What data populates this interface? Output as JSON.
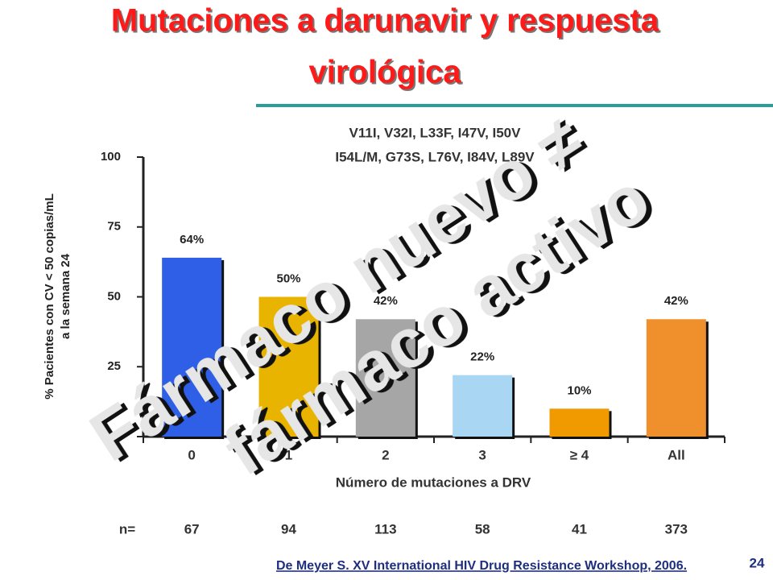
{
  "chart_data": {
    "type": "bar",
    "title": [
      "Mutaciones a darunavir y respuesta",
      "virológica"
    ],
    "annotation": [
      "V11I, V32I, L33F, I47V, I50V",
      "I54L/M, G73S, L76V, I84V, L89V"
    ],
    "overlay": [
      "Fármaco nuevo ≠",
      "fármaco activo"
    ],
    "y_label": [
      "% Pacientes con CV < 50 copias/mL",
      "a la semana 24"
    ],
    "x_label": "Número de mutaciones a DRV",
    "categories": [
      "0",
      "1",
      "2",
      "3",
      "≥ 4",
      "All"
    ],
    "values": [
      64,
      50,
      42,
      22,
      10,
      42
    ],
    "value_labels": [
      "64%",
      "50%",
      "42%",
      "22%",
      "10%",
      "42%"
    ],
    "colors": [
      "#2f5fe6",
      "#e8b400",
      "#a6a6a6",
      "#a9d6f2",
      "#f09a00",
      "#f0902c"
    ],
    "ylim": [
      0,
      100
    ],
    "yticks": [
      25,
      50,
      75,
      100
    ],
    "n_label": "n=",
    "n": [
      67,
      94,
      113,
      58,
      41,
      373
    ],
    "footnote": "De Meyer S. XV International HIV Drug Resistance Workshop, 2006.",
    "page_number": "24"
  }
}
